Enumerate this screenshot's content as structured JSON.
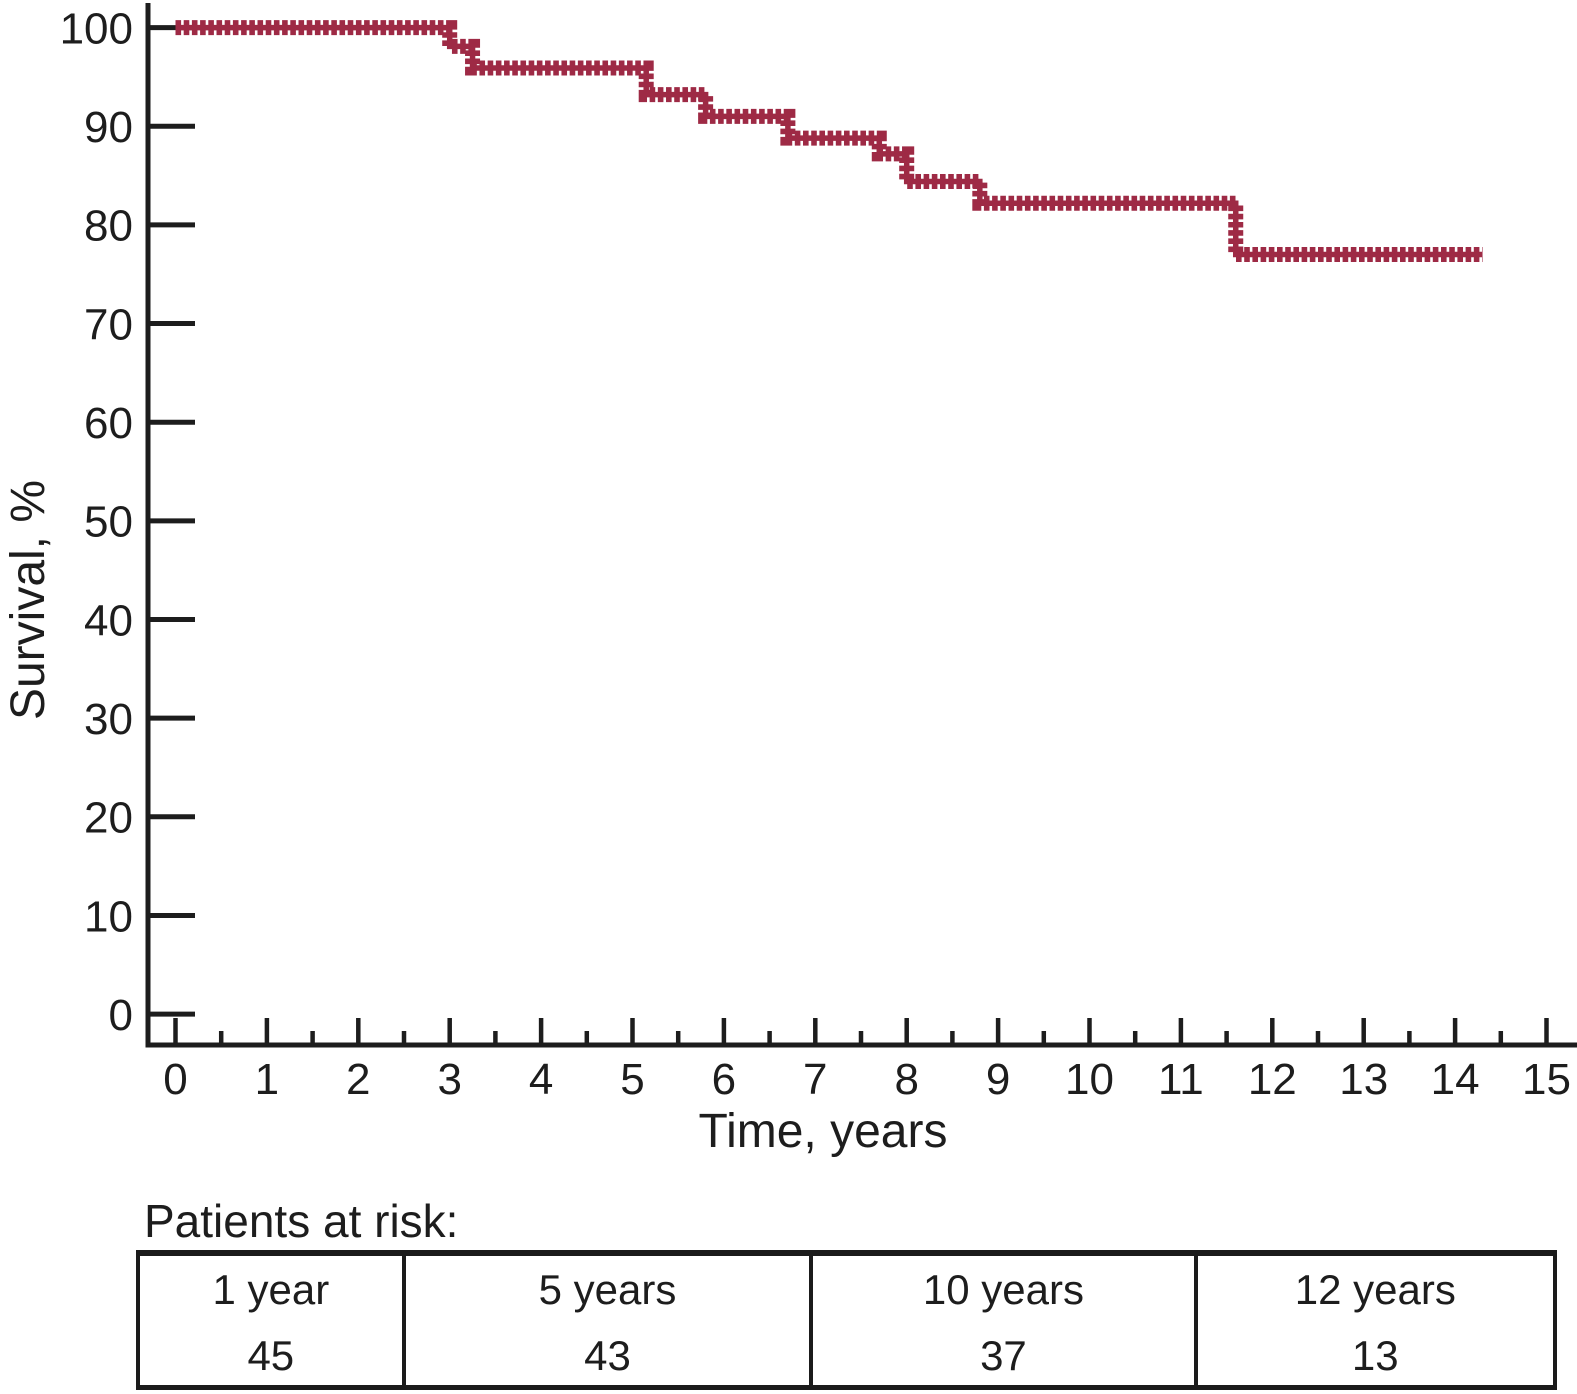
{
  "figure": {
    "y_axis_label": "Survival, %",
    "x_axis_label": "Time, years",
    "y_ticks": [
      0,
      10,
      20,
      30,
      40,
      50,
      60,
      70,
      80,
      90,
      100
    ],
    "x_ticks": [
      0,
      1,
      2,
      3,
      4,
      5,
      6,
      7,
      8,
      9,
      10,
      11,
      12,
      13,
      14,
      15
    ],
    "curve_color": "#9e2a45",
    "axis_color": "#1d1d1d"
  },
  "risk_table": {
    "title": "Patients at risk:",
    "cells": [
      {
        "label": "1 year",
        "value": "45"
      },
      {
        "label": "5 years",
        "value": "43"
      },
      {
        "label": "10 years",
        "value": "37"
      },
      {
        "label": "12 years",
        "value": "13"
      }
    ]
  },
  "chart_data": {
    "type": "line",
    "variant": "kaplan_meier_step_curve",
    "title": "",
    "xlabel": "Time, years",
    "ylabel": "Survival, %",
    "xlim": [
      0,
      15
    ],
    "ylim": [
      0,
      100
    ],
    "x_tick_interval": 1,
    "x_minor_tick_interval": 0.5,
    "y_tick_interval": 10,
    "grid": false,
    "legend": false,
    "series": [
      {
        "name": "Survival",
        "color": "#9e2a45",
        "line_style": "thick step line with dense censoring tick marks (railroad-tie dashes)",
        "step_points": [
          [
            0,
            100
          ],
          [
            3.0,
            98.1
          ],
          [
            3.25,
            95.9
          ],
          [
            5.15,
            93.2
          ],
          [
            5.8,
            91.0
          ],
          [
            6.7,
            88.8
          ],
          [
            7.7,
            87.2
          ],
          [
            8.0,
            84.4
          ],
          [
            8.8,
            82.2
          ],
          [
            11.6,
            77.0
          ]
        ],
        "end_x": 14.3
      }
    ],
    "patients_at_risk": {
      "1 year": 45,
      "5 years": 43,
      "10 years": 37,
      "12 years": 13
    }
  }
}
